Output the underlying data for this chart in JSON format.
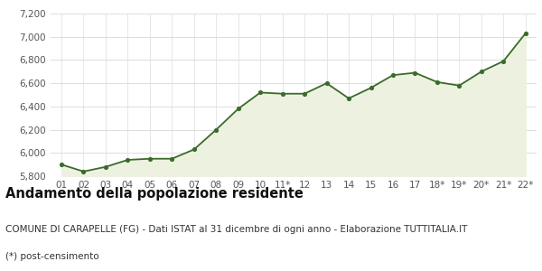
{
  "x_labels": [
    "01",
    "02",
    "03",
    "04",
    "05",
    "06",
    "07",
    "08",
    "09",
    "10",
    "11*",
    "12",
    "13",
    "14",
    "15",
    "16",
    "17",
    "18*",
    "19*",
    "20*",
    "21*",
    "22*"
  ],
  "y_values": [
    5900,
    5840,
    5880,
    5940,
    5950,
    5950,
    6030,
    6200,
    6380,
    6520,
    6510,
    6510,
    6600,
    6470,
    6560,
    6670,
    6690,
    6610,
    6580,
    6700,
    6790,
    7030
  ],
  "ylim": [
    5800,
    7200
  ],
  "yticks": [
    5800,
    6000,
    6200,
    6400,
    6600,
    6800,
    7000,
    7200
  ],
  "line_color": "#3a6b2a",
  "fill_color": "#edf2e0",
  "marker_color": "#3a6b2a",
  "bg_color": "#ffffff",
  "grid_color": "#dddddd",
  "title": "Andamento della popolazione residente",
  "subtitle": "COMUNE DI CARAPELLE (FG) - Dati ISTAT al 31 dicembre di ogni anno - Elaborazione TUTTITALIA.IT",
  "footnote": "(*) post-censimento",
  "title_fontsize": 10.5,
  "subtitle_fontsize": 7.5,
  "footnote_fontsize": 7.5,
  "tick_fontsize": 7.5
}
